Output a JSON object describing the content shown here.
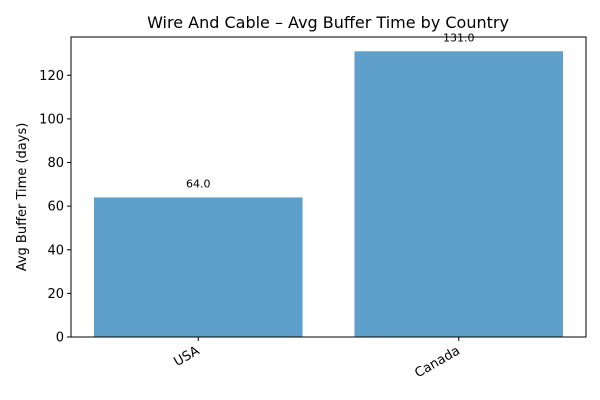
{
  "chart_data": {
    "type": "bar",
    "title": "Wire And Cable – Avg Buffer Time by Country",
    "xlabel": "",
    "ylabel": "Avg Buffer Time (days)",
    "categories": [
      "USA",
      "Canada"
    ],
    "values": [
      64.0,
      131.0
    ],
    "data_labels": [
      "64.0",
      "131.0"
    ],
    "ylim": [
      0,
      137.55
    ],
    "yticks": [
      0,
      20,
      40,
      60,
      80,
      100,
      120
    ],
    "grid": false,
    "legend": "none",
    "bar_color": "#5f9fcc"
  }
}
